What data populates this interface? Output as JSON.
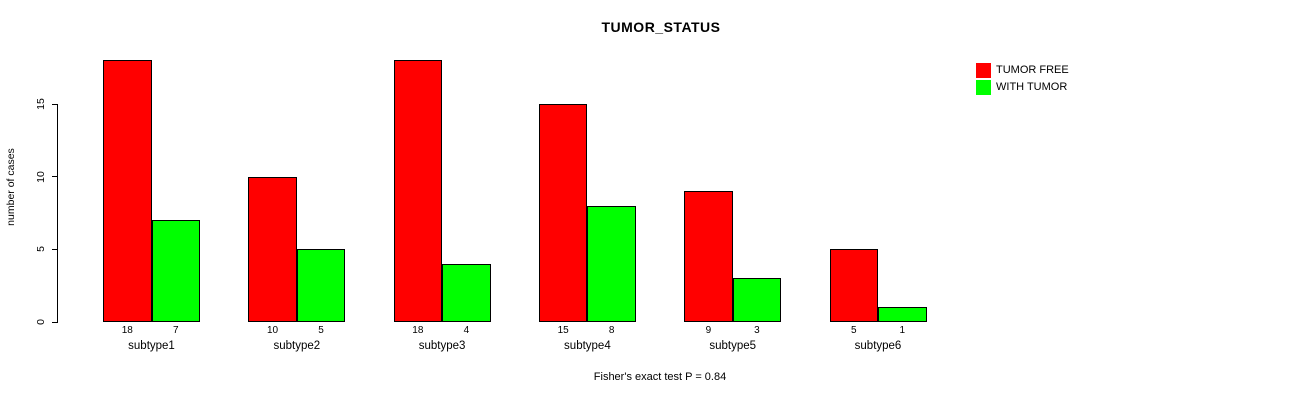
{
  "chart_data": {
    "type": "bar",
    "grouped": true,
    "title": "TUMOR_STATUS",
    "ylabel": "number of cases",
    "xlabel": "",
    "footnote": "Fisher's exact test P = 0.84",
    "categories": [
      "subtype1",
      "subtype2",
      "subtype3",
      "subtype4",
      "subtype5",
      "subtype6"
    ],
    "series": [
      {
        "name": "TUMOR FREE",
        "color": "#FF0000",
        "values": [
          18,
          10,
          18,
          15,
          9,
          5
        ]
      },
      {
        "name": "WITH TUMOR",
        "color": "#00FF00",
        "values": [
          7,
          5,
          4,
          8,
          3,
          1
        ]
      }
    ],
    "yticks": [
      0,
      5,
      10,
      15
    ],
    "ylim": [
      0,
      18
    ],
    "bar_value_labels": true,
    "grid": false,
    "legend_position": "top-right",
    "legend": [
      {
        "label": "TUMOR FREE",
        "color": "#FF0000"
      },
      {
        "label": "WITH TUMOR",
        "color": "#00FF00"
      }
    ]
  }
}
